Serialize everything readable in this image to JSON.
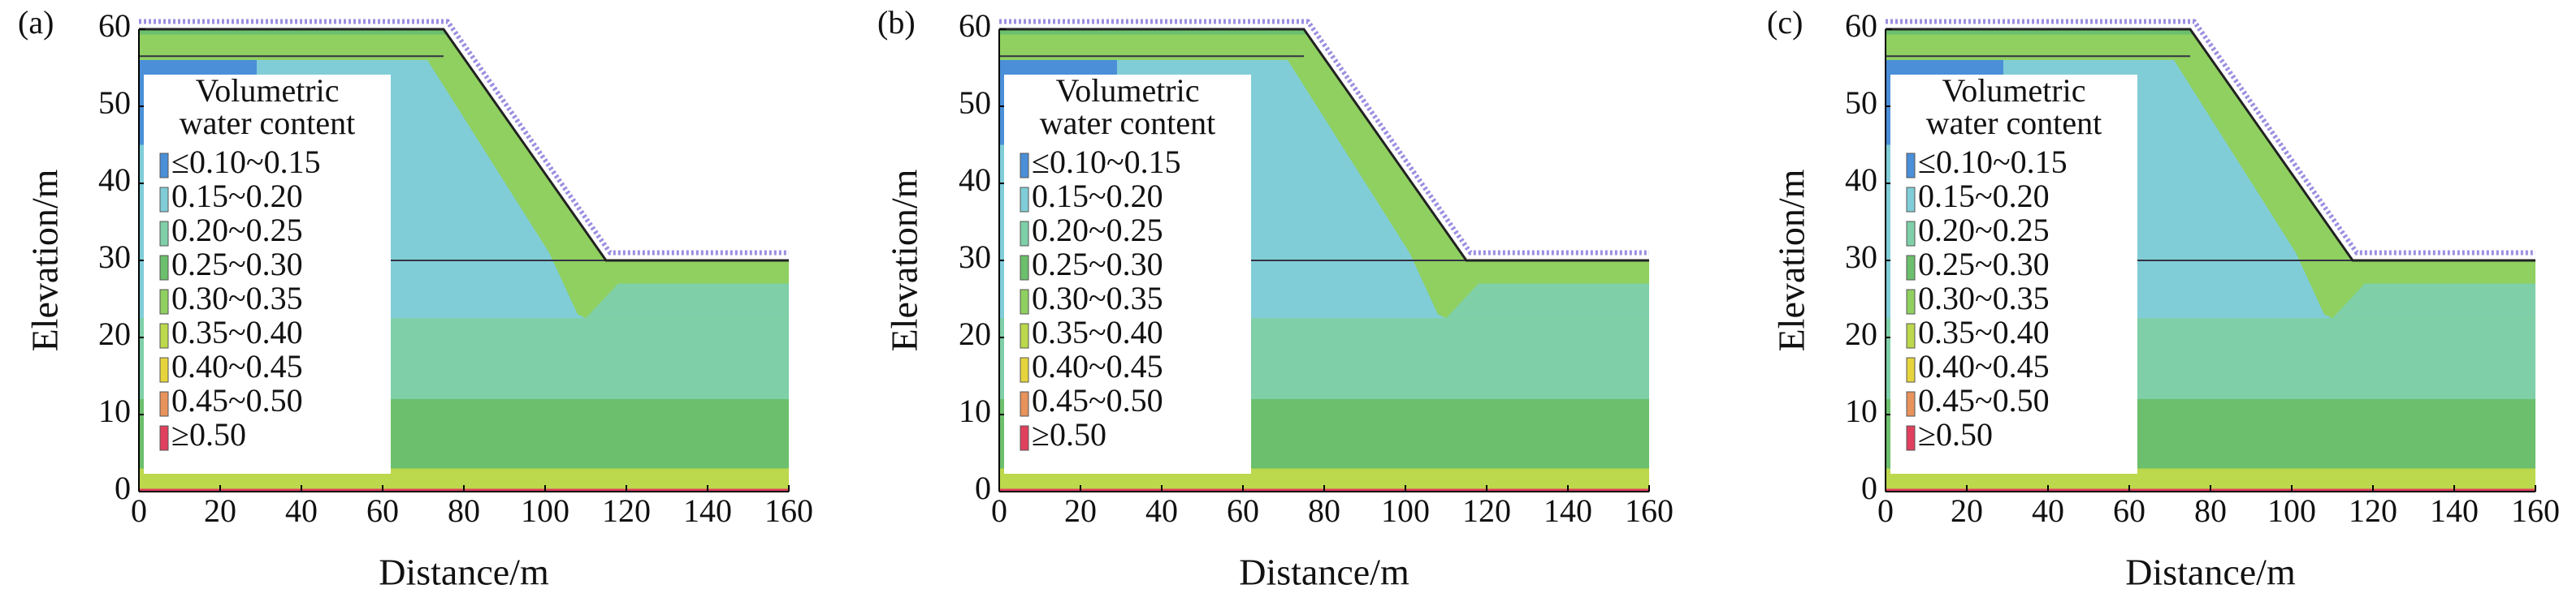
{
  "chart_data": [
    {
      "type": "contour",
      "panel_label": "(a)",
      "xlabel": "Distance/m",
      "ylabel": "Elevation/m",
      "xlim": [
        0,
        160
      ],
      "ylim": [
        0,
        60
      ],
      "xticks": [
        0,
        20,
        40,
        60,
        80,
        100,
        120,
        140,
        160
      ],
      "yticks": [
        0,
        10,
        20,
        30,
        40,
        50,
        60
      ],
      "legend_title": [
        "Volumetric",
        "water content"
      ],
      "legend": [
        {
          "label": "≤0.10~0.15",
          "color": "#4a8fd8"
        },
        {
          "label": "0.15~0.20",
          "color": "#80cdd8"
        },
        {
          "label": "0.20~0.25",
          "color": "#7fcfa8"
        },
        {
          "label": "0.25~0.30",
          "color": "#6cbf6c"
        },
        {
          "label": "0.30~0.35",
          "color": "#8fd060"
        },
        {
          "label": "0.35~0.40",
          "color": "#bcd84c"
        },
        {
          "label": "0.40~0.45",
          "color": "#e6d43c"
        },
        {
          "label": "0.45~0.50",
          "color": "#e8925c"
        },
        {
          "label": "≥0.50",
          "color": "#e0405e"
        }
      ]
    },
    {
      "type": "contour",
      "panel_label": "(b)",
      "xlabel": "Distance/m",
      "ylabel": "Elevation/m",
      "xlim": [
        0,
        160
      ],
      "ylim": [
        0,
        60
      ],
      "xticks": [
        0,
        20,
        40,
        60,
        80,
        100,
        120,
        140,
        160
      ],
      "yticks": [
        0,
        10,
        20,
        30,
        40,
        50,
        60
      ],
      "legend_title": [
        "Volumetric",
        "water content"
      ],
      "legend": [
        {
          "label": "≤0.10~0.15",
          "color": "#4a8fd8"
        },
        {
          "label": "0.15~0.20",
          "color": "#80cdd8"
        },
        {
          "label": "0.20~0.25",
          "color": "#7fcfa8"
        },
        {
          "label": "0.25~0.30",
          "color": "#6cbf6c"
        },
        {
          "label": "0.30~0.35",
          "color": "#8fd060"
        },
        {
          "label": "0.35~0.40",
          "color": "#bcd84c"
        },
        {
          "label": "0.40~0.45",
          "color": "#e6d43c"
        },
        {
          "label": "0.45~0.50",
          "color": "#e8925c"
        },
        {
          "label": "≥0.50",
          "color": "#e0405e"
        }
      ]
    },
    {
      "type": "contour",
      "panel_label": "(c)",
      "xlabel": "Distance/m",
      "ylabel": "Elevation/m",
      "xlim": [
        0,
        160
      ],
      "ylim": [
        0,
        60
      ],
      "xticks": [
        0,
        20,
        40,
        60,
        80,
        100,
        120,
        140,
        160
      ],
      "yticks": [
        0,
        10,
        20,
        30,
        40,
        50,
        60
      ],
      "legend_title": [
        "Volumetric",
        "water content"
      ],
      "legend": [
        {
          "label": "≤0.10~0.15",
          "color": "#4a8fd8"
        },
        {
          "label": "0.15~0.20",
          "color": "#80cdd8"
        },
        {
          "label": "0.20~0.25",
          "color": "#7fcfa8"
        },
        {
          "label": "0.25~0.30",
          "color": "#6cbf6c"
        },
        {
          "label": "0.30~0.35",
          "color": "#8fd060"
        },
        {
          "label": "0.35~0.40",
          "color": "#bcd84c"
        },
        {
          "label": "0.40~0.45",
          "color": "#e6d43c"
        },
        {
          "label": "0.45~0.50",
          "color": "#e8925c"
        },
        {
          "label": "≥0.50",
          "color": "#e0405e"
        }
      ]
    }
  ]
}
